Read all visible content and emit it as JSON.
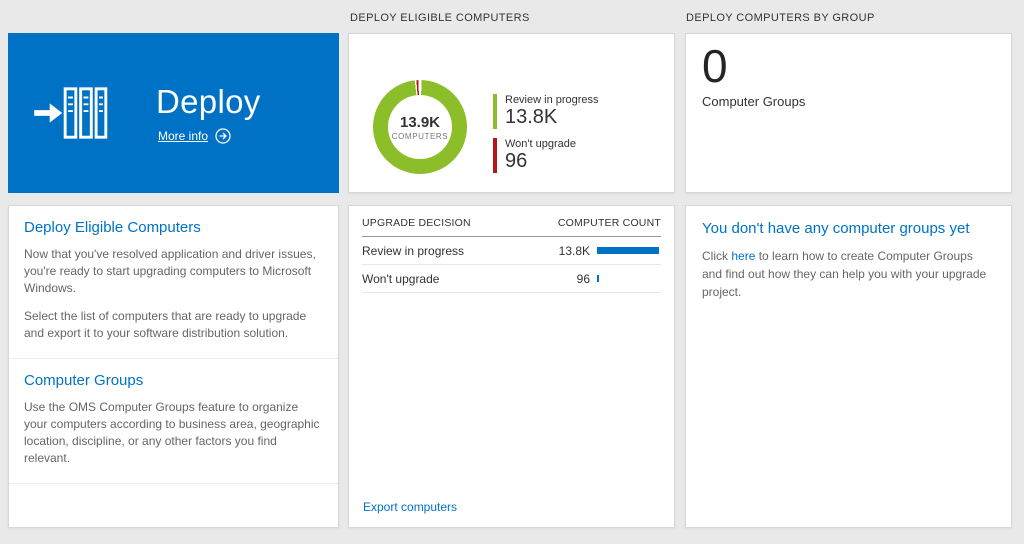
{
  "headers": {
    "middle": "DEPLOY ELIGIBLE COMPUTERS",
    "right": "DEPLOY COMPUTERS BY GROUP"
  },
  "deploy_tile": {
    "title": "Deploy",
    "more_info_label": "More info"
  },
  "left_panel": {
    "sections": [
      {
        "heading": "Deploy Eligible Computers",
        "paragraphs": [
          "Now that you've resolved application and driver issues, you're ready to start upgrading computers to Microsoft Windows.",
          "Select the list of computers that are ready to upgrade and export it to your software distribution solution."
        ]
      },
      {
        "heading": "Computer Groups",
        "paragraphs": [
          "Use the OMS Computer Groups feature to organize your computers according to business area, geographic location, discipline, or any other factors you find relevant."
        ]
      }
    ]
  },
  "chart_data": {
    "type": "pie",
    "title": "DEPLOY ELIGIBLE COMPUTERS",
    "center_value": "13.9K",
    "center_label": "COMPUTERS",
    "legend_position": "right",
    "slices": [
      {
        "label": "Review in progress",
        "value": "13.8K",
        "value_num": 13800,
        "color": "#8cbe29"
      },
      {
        "label": "Won't upgrade",
        "value": "96",
        "value_num": 96,
        "color": "#ba141a"
      }
    ]
  },
  "table": {
    "headers": [
      "UPGRADE DECISION",
      "COMPUTER COUNT"
    ],
    "rows": [
      {
        "decision": "Review in progress",
        "count": "13.8K",
        "count_num": 13800,
        "bar_pct": 100
      },
      {
        "decision": "Won't upgrade",
        "count": "96",
        "count_num": 96,
        "bar_pct": 2
      }
    ],
    "export_label": "Export computers"
  },
  "groups_tile": {
    "count": "0",
    "label": "Computer Groups"
  },
  "groups_panel": {
    "heading": "You don't have any computer groups yet",
    "text_before": "Click ",
    "link_label": "here",
    "text_after": " to learn how to create Computer Groups and find out how they can help you with your upgrade project."
  },
  "colors": {
    "accent_blue": "#0072c6",
    "chart_green": "#8cbe29",
    "chart_red": "#ba141a",
    "bar_blue": "#0072c6",
    "background": "#e9e9e9"
  }
}
